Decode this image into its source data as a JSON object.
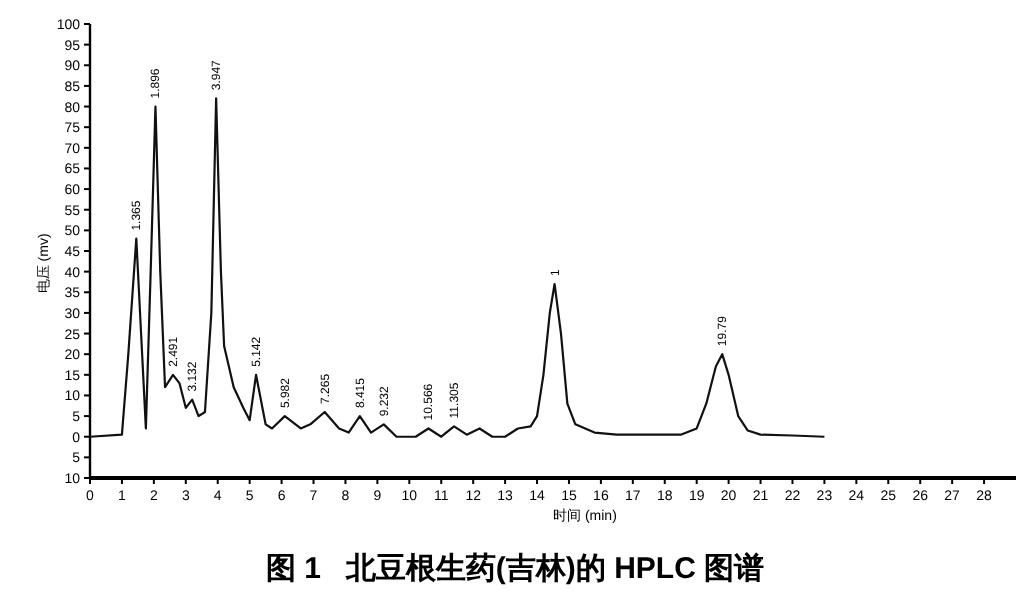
{
  "chart_data": {
    "type": "line",
    "title": "图 1   北豆根生药(吉林)的 HPLC 图谱",
    "xlabel": "时间 (min)",
    "ylabel": "电压 (mv)",
    "xlim": [
      0,
      29
    ],
    "xticks": [
      0,
      1,
      2,
      3,
      4,
      5,
      6,
      7,
      8,
      9,
      10,
      11,
      12,
      13,
      14,
      15,
      16,
      17,
      18,
      19,
      20,
      21,
      22,
      23,
      24,
      25,
      26,
      27,
      28
    ],
    "ylim": [
      -10,
      100
    ],
    "yticks": [
      {
        "value": -10,
        "label": "10"
      },
      {
        "value": -5,
        "label": "5"
      },
      0,
      5,
      10,
      15,
      20,
      25,
      30,
      35,
      40,
      45,
      50,
      55,
      60,
      65,
      70,
      75,
      80,
      85,
      90,
      95,
      100
    ],
    "grid": false,
    "marker": "none",
    "line_style": "solid",
    "series": [
      {
        "color": "#111111",
        "x": [
          0,
          1.0,
          1.2,
          1.45,
          1.6,
          1.75,
          1.9,
          2.05,
          2.2,
          2.35,
          2.6,
          2.8,
          3.0,
          3.2,
          3.4,
          3.6,
          3.8,
          3.95,
          4.1,
          4.2,
          4.5,
          4.8,
          5.0,
          5.2,
          5.5,
          5.7,
          6.1,
          6.6,
          6.9,
          7.35,
          7.8,
          8.1,
          8.45,
          8.8,
          9.2,
          9.6,
          10.2,
          10.6,
          11.0,
          11.4,
          11.8,
          12.2,
          12.6,
          13.0,
          13.4,
          13.8,
          14.0,
          14.2,
          14.4,
          14.55,
          14.75,
          14.95,
          15.2,
          15.8,
          16.5,
          17.0,
          18.5,
          19.0,
          19.3,
          19.6,
          19.8,
          20.0,
          20.3,
          20.6,
          21.0,
          22.0,
          23.0
        ],
        "values": [
          0,
          0.5,
          20,
          48,
          25,
          2,
          40,
          80,
          40,
          12,
          15,
          13,
          7,
          9,
          5,
          6,
          30,
          82,
          40,
          22,
          12,
          7,
          4,
          15,
          3,
          2,
          5,
          2,
          3,
          6,
          2,
          1,
          5,
          1,
          3,
          0,
          0,
          2,
          0,
          2.5,
          0.5,
          2,
          0,
          0,
          2,
          2.5,
          5,
          15,
          30,
          37,
          25,
          8,
          3,
          1,
          0.5,
          0.5,
          0.5,
          2,
          8,
          17,
          20,
          15,
          5,
          1.5,
          0.5,
          0.3,
          0
        ]
      }
    ],
    "annotations": [
      {
        "text": "1.365",
        "x": 1.45,
        "y": 48
      },
      {
        "text": "1.896",
        "x": 2.05,
        "y": 80
      },
      {
        "text": "3.947",
        "x": 3.95,
        "y": 82
      },
      {
        "text": "2.491",
        "x": 2.6,
        "y": 15
      },
      {
        "text": "3.132",
        "x": 3.2,
        "y": 9
      },
      {
        "text": "5.142",
        "x": 5.2,
        "y": 15
      },
      {
        "text": "5.982",
        "x": 6.1,
        "y": 5
      },
      {
        "text": "7.265",
        "x": 7.35,
        "y": 6
      },
      {
        "text": "8.415",
        "x": 8.45,
        "y": 5
      },
      {
        "text": "9.232",
        "x": 9.2,
        "y": 3
      },
      {
        "text": "10.566",
        "x": 10.6,
        "y": 2
      },
      {
        "text": "11.305",
        "x": 11.4,
        "y": 2.5
      },
      {
        "text": "1",
        "x": 14.55,
        "y": 37
      },
      {
        "text": "19.79",
        "x": 19.8,
        "y": 20
      }
    ]
  }
}
